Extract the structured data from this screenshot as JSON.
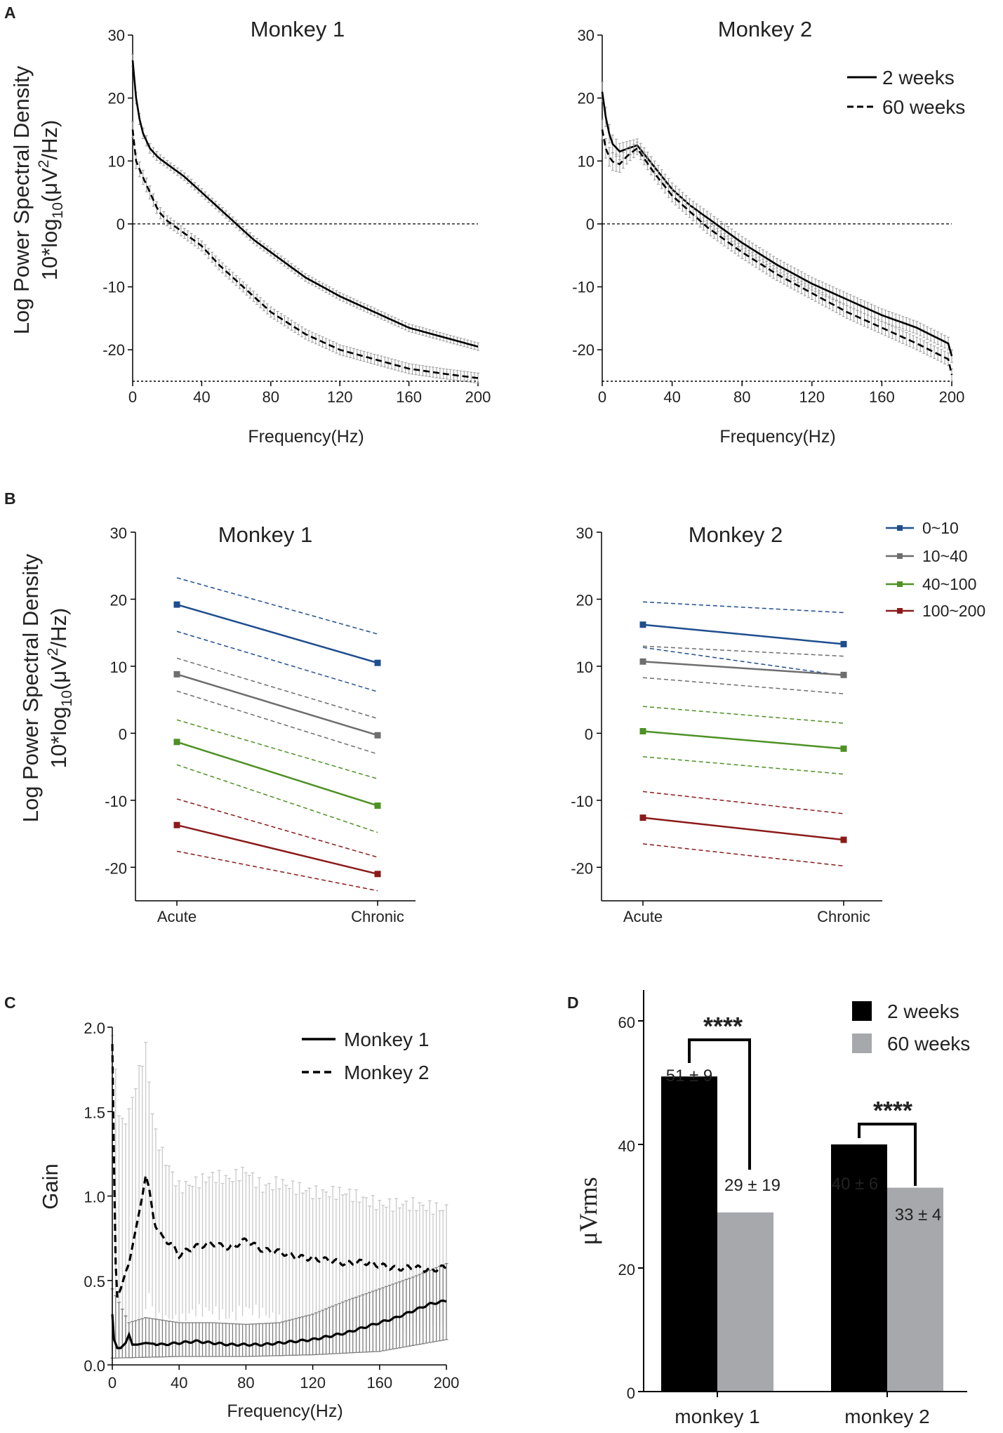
{
  "chart_data": [
    {
      "id": "A1",
      "panel": "A",
      "type": "line",
      "title": "Monkey 1",
      "xlabel": "Frequency(Hz)",
      "ylabel_line1": "Log Power Spectral Density",
      "ylabel_line2": "10*log10(μV2/Hz)",
      "xlim": [
        0,
        200
      ],
      "ylim": [
        -25,
        30
      ],
      "xticks": [
        0,
        40,
        80,
        120,
        160,
        200
      ],
      "yticks": [
        -20,
        -10,
        0,
        10,
        20,
        30
      ],
      "reference_line": 0,
      "series": [
        {
          "name": "2 weeks",
          "style": "solid",
          "err": 0.6,
          "x": [
            0,
            2,
            5,
            10,
            15,
            20,
            30,
            40,
            50,
            60,
            70,
            80,
            100,
            120,
            140,
            160,
            180,
            200
          ],
          "y": [
            26,
            20,
            15,
            12,
            10.5,
            9.5,
            7.5,
            5,
            2.5,
            0,
            -2.5,
            -4.5,
            -8.5,
            -11.5,
            -14,
            -16.5,
            -18,
            -19.5
          ]
        },
        {
          "name": "60 weeks",
          "style": "dashed",
          "err": 0.8,
          "x": [
            0,
            2,
            5,
            10,
            15,
            20,
            30,
            40,
            50,
            60,
            70,
            80,
            100,
            120,
            140,
            160,
            180,
            200
          ],
          "y": [
            15,
            10,
            8,
            5,
            2,
            0.5,
            -1.5,
            -3.5,
            -6.5,
            -9,
            -11.5,
            -14,
            -17.5,
            -20,
            -21.5,
            -23,
            -23.8,
            -24.5
          ]
        }
      ]
    },
    {
      "id": "A2",
      "panel": "A",
      "type": "line",
      "title": "Monkey 2",
      "xlabel": "Frequency(Hz)",
      "xlim": [
        0,
        200
      ],
      "ylim": [
        -25,
        30
      ],
      "xticks": [
        0,
        40,
        80,
        120,
        160,
        200
      ],
      "yticks": [
        -20,
        -10,
        0,
        10,
        20,
        30
      ],
      "reference_line": 0,
      "legend": [
        "2 weeks",
        "60 weeks"
      ],
      "series": [
        {
          "name": "2 weeks",
          "style": "solid",
          "err": 1.0,
          "x": [
            0,
            2,
            5,
            10,
            15,
            20,
            30,
            40,
            50,
            60,
            70,
            80,
            100,
            120,
            140,
            160,
            180,
            198,
            200
          ],
          "y": [
            21,
            17,
            13,
            11.5,
            12,
            12.5,
            9,
            5.5,
            3,
            1,
            -1,
            -3,
            -6.5,
            -9.5,
            -12,
            -14.5,
            -16.5,
            -19,
            -21
          ]
        },
        {
          "name": "60 weeks",
          "style": "dashed",
          "err": 1.0,
          "x": [
            0,
            2,
            5,
            10,
            15,
            20,
            30,
            40,
            50,
            60,
            70,
            80,
            100,
            120,
            140,
            160,
            180,
            198,
            200
          ],
          "y": [
            15,
            12,
            10,
            9.5,
            11,
            12,
            8,
            4.5,
            2,
            -0.5,
            -2.5,
            -4.5,
            -8,
            -11,
            -14,
            -16.5,
            -19,
            -21.5,
            -24
          ]
        }
      ]
    },
    {
      "id": "B1",
      "panel": "B",
      "type": "line",
      "title": "Monkey 1",
      "categories": [
        "Acute",
        "Chronic"
      ],
      "ylabel_line1": "Log Power Spectral Density",
      "ylabel_line2": "10*log10(μV2/Hz)",
      "ylim": [
        -25,
        30
      ],
      "yticks": [
        -20,
        -10,
        0,
        10,
        20,
        30
      ],
      "series": [
        {
          "name": "0~10",
          "color": "#1f4e8f",
          "values": [
            19.2,
            10.5
          ],
          "upper": [
            23.2,
            14.8
          ],
          "lower": [
            15.2,
            6.2
          ]
        },
        {
          "name": "10~40",
          "color": "#6e6e6e",
          "values": [
            8.8,
            -0.3
          ],
          "upper": [
            11.2,
            2.2
          ],
          "lower": [
            6.3,
            -3.1
          ]
        },
        {
          "name": "40~100",
          "color": "#4e9125",
          "values": [
            -1.3,
            -10.8
          ],
          "upper": [
            2.0,
            -6.8
          ],
          "lower": [
            -4.7,
            -14.8
          ]
        },
        {
          "name": "100~200",
          "color": "#8b1a1a",
          "values": [
            -13.7,
            -21.0
          ],
          "upper": [
            -9.8,
            -18.5
          ],
          "lower": [
            -17.6,
            -23.5
          ]
        }
      ]
    },
    {
      "id": "B2",
      "panel": "B",
      "type": "line",
      "title": "Monkey 2",
      "categories": [
        "Acute",
        "Chronic"
      ],
      "ylim": [
        -25,
        30
      ],
      "yticks": [
        -20,
        -10,
        0,
        10,
        20,
        30
      ],
      "legend": [
        "0~10",
        "10~40",
        "40~100",
        "100~200"
      ],
      "series": [
        {
          "name": "0~10",
          "color": "#1f4e8f",
          "values": [
            16.2,
            13.3
          ],
          "upper": [
            19.6,
            18.0
          ],
          "lower": [
            12.8,
            8.6
          ]
        },
        {
          "name": "10~40",
          "color": "#6e6e6e",
          "values": [
            10.7,
            8.7
          ],
          "upper": [
            13.0,
            11.5
          ],
          "lower": [
            8.3,
            5.9
          ]
        },
        {
          "name": "40~100",
          "color": "#4e9125",
          "values": [
            0.3,
            -2.3
          ],
          "upper": [
            4.0,
            1.5
          ],
          "lower": [
            -3.5,
            -6.1
          ]
        },
        {
          "name": "100~200",
          "color": "#8b1a1a",
          "values": [
            -12.6,
            -15.9
          ],
          "upper": [
            -8.7,
            -12.0
          ],
          "lower": [
            -16.5,
            -19.8
          ]
        }
      ]
    },
    {
      "id": "C",
      "panel": "C",
      "type": "line",
      "xlabel": "Frequency(Hz)",
      "ylabel": "Gain",
      "xlim": [
        0,
        200
      ],
      "ylim": [
        0,
        2.0
      ],
      "xticks": [
        0,
        40,
        80,
        120,
        160,
        200
      ],
      "yticks": [
        "0.0",
        "0.5",
        "1.0",
        "1.5",
        "2.0"
      ],
      "legend": [
        "Monkey 1",
        "Monkey 2"
      ],
      "series": [
        {
          "name": "Monkey 1",
          "style": "solid",
          "x": [
            0,
            1,
            3,
            5,
            8,
            10,
            12,
            15,
            20,
            30,
            40,
            50,
            60,
            70,
            80,
            90,
            100,
            110,
            120,
            130,
            140,
            150,
            160,
            170,
            180,
            190,
            200
          ],
          "y": [
            0.3,
            0.15,
            0.1,
            0.1,
            0.13,
            0.18,
            0.12,
            0.12,
            0.13,
            0.12,
            0.13,
            0.14,
            0.13,
            0.12,
            0.12,
            0.12,
            0.13,
            0.14,
            0.15,
            0.17,
            0.19,
            0.22,
            0.25,
            0.28,
            0.32,
            0.36,
            0.38
          ],
          "err_lower_x": [
            0,
            40,
            80,
            120,
            160,
            200
          ],
          "err_lower": [
            0.04,
            0.05,
            0.05,
            0.06,
            0.08,
            0.15
          ],
          "err_upper_x": [
            0,
            10,
            20,
            40,
            60,
            80,
            100,
            120,
            140,
            160,
            180,
            200
          ],
          "err_upper": [
            0.45,
            0.25,
            0.28,
            0.25,
            0.25,
            0.24,
            0.25,
            0.3,
            0.38,
            0.45,
            0.52,
            0.6
          ]
        },
        {
          "name": "Monkey 2",
          "style": "dashed",
          "x": [
            0,
            1,
            2,
            3,
            5,
            8,
            10,
            12,
            15,
            18,
            20,
            22,
            25,
            30,
            35,
            40,
            45,
            50,
            60,
            70,
            80,
            90,
            100,
            110,
            120,
            130,
            140,
            150,
            160,
            170,
            180,
            190,
            200
          ],
          "y": [
            1.9,
            1.2,
            0.6,
            0.4,
            0.45,
            0.55,
            0.6,
            0.7,
            0.85,
            1.0,
            1.12,
            1.05,
            0.85,
            0.75,
            0.72,
            0.65,
            0.68,
            0.7,
            0.72,
            0.69,
            0.74,
            0.68,
            0.67,
            0.64,
            0.63,
            0.62,
            0.6,
            0.61,
            0.59,
            0.57,
            0.58,
            0.56,
            0.58
          ],
          "err_upper_x": [
            0,
            5,
            10,
            15,
            20,
            25,
            30,
            40,
            50,
            60,
            70,
            80,
            90,
            100,
            120,
            140,
            160,
            180,
            200
          ],
          "err_upper": [
            1.95,
            1.4,
            1.5,
            1.7,
            1.88,
            1.4,
            1.25,
            1.05,
            1.08,
            1.12,
            1.1,
            1.15,
            1.05,
            1.08,
            1.02,
            1.02,
            0.95,
            0.95,
            0.92
          ]
        }
      ]
    },
    {
      "id": "D",
      "panel": "D",
      "type": "bar",
      "ylabel": "μVrms",
      "categories": [
        "monkey 1",
        "monkey 2"
      ],
      "ylim": [
        0,
        65
      ],
      "yticks": [
        0,
        20,
        40,
        60
      ],
      "legend": [
        "2 weeks",
        "60 weeks"
      ],
      "series": [
        {
          "name": "2 weeks",
          "color": "#000000",
          "values": [
            51,
            40
          ],
          "labels": [
            "51 ± 9",
            "40 ± 6"
          ]
        },
        {
          "name": "60 weeks",
          "color": "#a7a8ac",
          "values": [
            29,
            33
          ],
          "labels": [
            "29 ± 19",
            "33 ± 4"
          ]
        }
      ],
      "significance": [
        "****",
        "****"
      ]
    }
  ],
  "panel_letters": {
    "a": "A",
    "b": "B",
    "c": "C",
    "d": "D"
  },
  "text": {
    "a1_title": "Monkey 1",
    "a2_title": "Monkey 2",
    "a_xlabel": "Frequency(Hz)",
    "a_ylabel1": "Log Power Spectral Density",
    "a_ylabel2_pre": "10*log",
    "a_ylabel2_sub": "10",
    "a_ylabel2_mid": "(μV",
    "a_ylabel2_sup": "2",
    "a_ylabel2_post": "/Hz)",
    "a_leg1": "2 weeks",
    "a_leg2": "60 weeks",
    "b1_title": "Monkey 1",
    "b2_title": "Monkey 2",
    "b_cat_acute": "Acute",
    "b_cat_chronic": "Chronic",
    "b_leg": [
      "0~10",
      "10~40",
      "40~100",
      "100~200"
    ],
    "c_xlabel": "Frequency(Hz)",
    "c_ylabel": "Gain",
    "c_leg1": "Monkey 1",
    "c_leg2": "Monkey 2",
    "d_ylabel": "μVrms",
    "d_leg1": "2 weeks",
    "d_leg2": "60 weeks",
    "d_cat1": "monkey 1",
    "d_cat2": "monkey 2",
    "d_lab11": "51 ± 9",
    "d_lab12": "29 ± 19",
    "d_lab21": "40 ± 6",
    "d_lab22": "33 ± 4",
    "d_star1": "****",
    "d_star2": "****"
  },
  "colors": {
    "b_0_10": "#1f4e8f",
    "b_10_40": "#6e6e6e",
    "b_40_100": "#4e9125",
    "b_100_200": "#8b1a1a",
    "d_2w": "#000000",
    "d_60w": "#a7a8ac"
  }
}
